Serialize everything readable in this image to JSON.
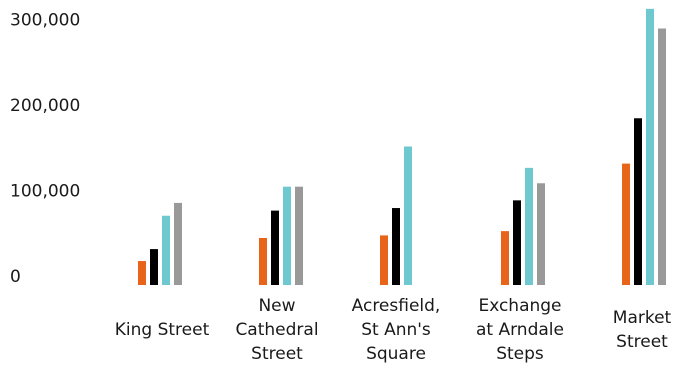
{
  "chart_data": {
    "type": "bar",
    "categories": [
      [
        "King Street"
      ],
      [
        "New",
        "Cathedral",
        "Street"
      ],
      [
        "Acresfield,",
        "St Ann's",
        "Square"
      ],
      [
        "Exchange",
        "at Arndale",
        "Steps"
      ],
      [
        "Market",
        "Street"
      ]
    ],
    "series": [
      {
        "color": "#e8641b",
        "values": [
          28000,
          55000,
          58000,
          63000,
          142000
        ]
      },
      {
        "color": "#000000",
        "values": [
          42000,
          87000,
          90000,
          99000,
          195000
        ]
      },
      {
        "color": "#6ec8cf",
        "values": [
          81000,
          115000,
          162000,
          137000,
          323000
        ]
      },
      {
        "color": "#999999",
        "values": [
          96000,
          115000,
          0,
          119000,
          300000
        ]
      }
    ],
    "yticks": [
      0,
      100000,
      200000,
      300000
    ],
    "ytick_labels": [
      "0",
      "100,000",
      "200,000",
      "300,000"
    ],
    "ylim": [
      0,
      325000
    ],
    "grid": false,
    "legend": "none",
    "title": "",
    "xlabel": "",
    "ylabel": ""
  }
}
